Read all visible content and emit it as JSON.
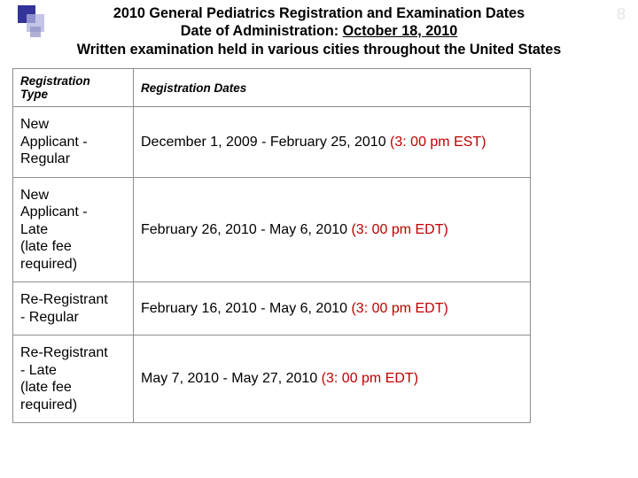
{
  "header": {
    "title": "2010 General Pediatrics Registration and Examination Dates",
    "admin_label": "Date of Administration: ",
    "admin_date": "October 18, 2010",
    "note": "Written examination held in various cities throughout the United States"
  },
  "page_number": "8",
  "colors": {
    "deadline": "#c00000",
    "border": "#8e8e8e",
    "bullet_primary": "#33339a"
  },
  "table": {
    "headers": {
      "type": "Registration Type",
      "dates": "Registration Dates"
    },
    "rows": [
      {
        "type_html": "New<br>Applicant -<br>Regular",
        "dates_pre": "December 1, 2009 - February 25, 2010 ",
        "dates_deadline": "(3: 00 pm EST)",
        "dates_post": ""
      },
      {
        "type_html": "New<br>Applicant -<br>Late<br>(late fee<br>required)",
        "dates_pre": "February 26, 2010 - May 6, 2010 ",
        "dates_deadline": "(3: 00 pm EDT)",
        "dates_post": ""
      },
      {
        "type_html": "Re-Registrant<br>- Regular",
        "dates_pre": "February 16, 2010 - May 6, 2010 ",
        "dates_deadline": "(3: 00 pm EDT)",
        "dates_post": ""
      },
      {
        "type_html": "Re-Registrant<br>- Late<br>(late fee<br>required)",
        "dates_pre": "May 7, 2010 - May 27, 2010 ",
        "dates_deadline": "(3: 00 pm EDT)",
        "dates_post": ""
      }
    ]
  }
}
